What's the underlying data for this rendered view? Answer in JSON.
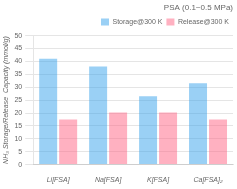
{
  "chart_data": {
    "type": "bar",
    "title": "PSA (0.1~0.5 MPa)",
    "ylabel": "NH₃ Storage/Release  Capacity (mmol/g)",
    "categories": [
      "Li[FSA]",
      "Na[FSA]",
      "K[FSA]",
      "Ca[FSA]₂"
    ],
    "series": [
      {
        "name": "Storage@300 K",
        "values": [
          41,
          38,
          26.5,
          31.5
        ]
      },
      {
        "name": "Release@300 K",
        "values": [
          17.5,
          20.2,
          20.2,
          17.5
        ]
      }
    ],
    "ylim": [
      0,
      50
    ],
    "yticks": [
      0,
      5,
      10,
      15,
      20,
      25,
      30,
      35,
      40,
      45,
      50
    ],
    "grid": true,
    "legend": "upper right"
  }
}
